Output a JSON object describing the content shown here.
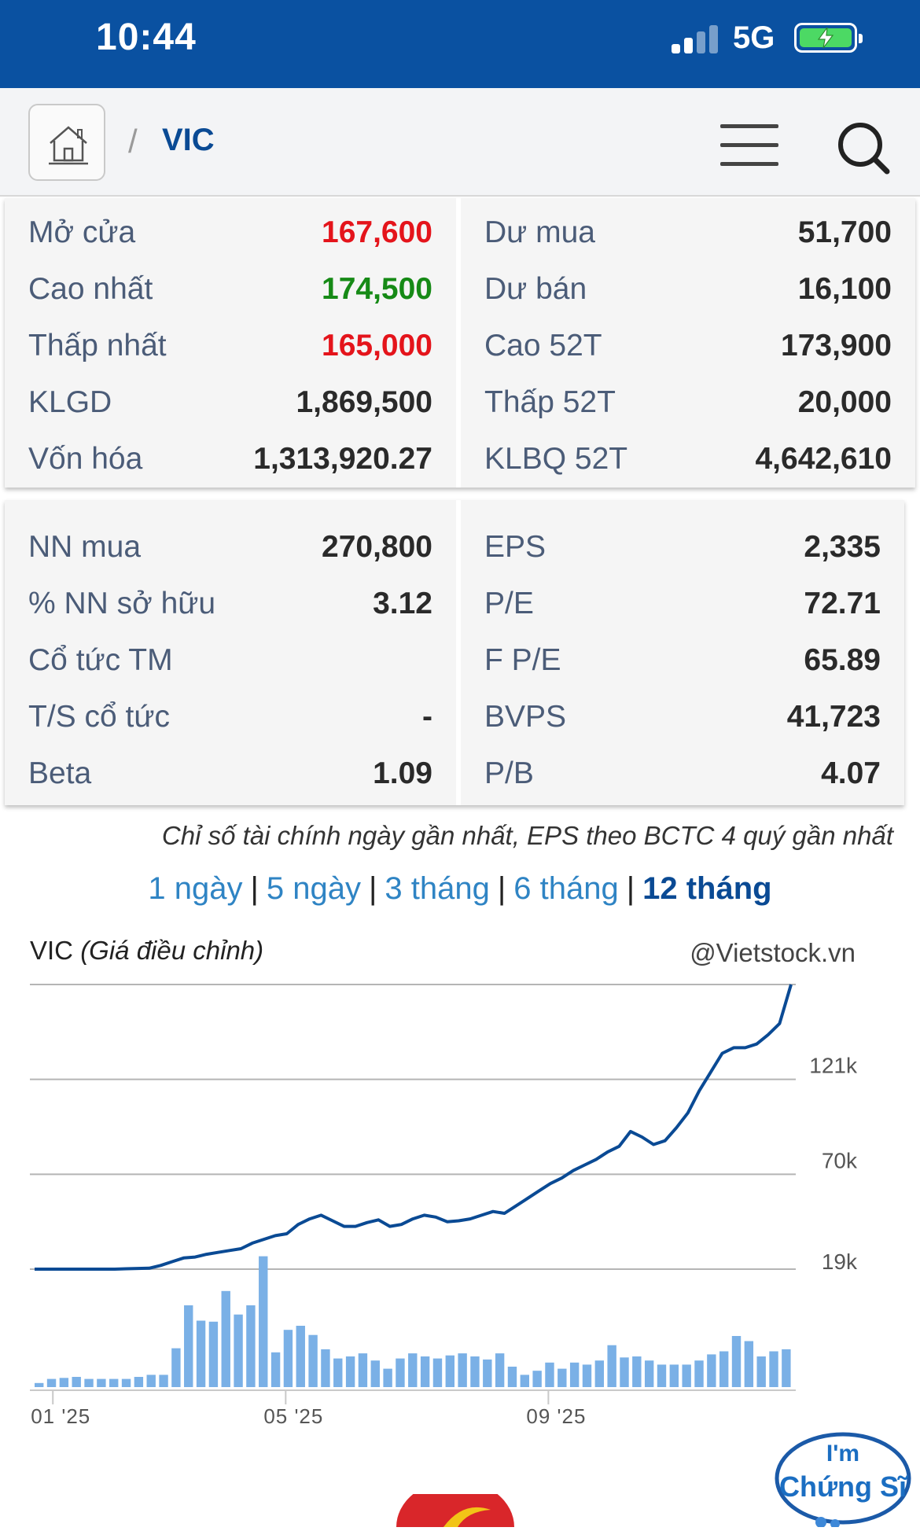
{
  "status_bar": {
    "time": "10:44",
    "network": "5G"
  },
  "header": {
    "separator": "/",
    "symbol": "VIC"
  },
  "price_panel": {
    "left": [
      {
        "label": "Mở cửa",
        "value": "167,600",
        "color": "red"
      },
      {
        "label": "Cao nhất",
        "value": "174,500",
        "color": "green"
      },
      {
        "label": "Thấp nhất",
        "value": "165,000",
        "color": "red"
      },
      {
        "label": "KLGD",
        "value": "1,869,500",
        "color": ""
      },
      {
        "label": "Vốn hóa",
        "value": "1,313,920.27",
        "color": ""
      }
    ],
    "right": [
      {
        "label": "Dư mua",
        "value": "51,700"
      },
      {
        "label": "Dư bán",
        "value": "16,100"
      },
      {
        "label": "Cao 52T",
        "value": "173,900"
      },
      {
        "label": "Thấp 52T",
        "value": "20,000"
      },
      {
        "label": "KLBQ 52T",
        "value": "4,642,610"
      }
    ]
  },
  "ratio_panel": {
    "left": [
      {
        "label": "NN mua",
        "value": "270,800"
      },
      {
        "label": "% NN sở hữu",
        "value": "3.12"
      },
      {
        "label": "Cổ tức TM",
        "value": ""
      },
      {
        "label": "T/S cổ tức",
        "value": "-"
      },
      {
        "label": "Beta",
        "value": "1.09"
      }
    ],
    "right": [
      {
        "label": "EPS",
        "value": "2,335"
      },
      {
        "label": "P/E",
        "value": "72.71"
      },
      {
        "label": "F P/E",
        "value": "65.89"
      },
      {
        "label": "BVPS",
        "value": "41,723"
      },
      {
        "label": "P/B",
        "value": "4.07"
      }
    ]
  },
  "note": "Chỉ số tài chính ngày gần nhất, EPS theo BCTC 4 quý gần nhất",
  "periods": {
    "p1": "1 ngày",
    "p2": "5 ngày",
    "p3": "3 tháng",
    "p4": "6 tháng",
    "p5": "12 tháng",
    "active": "12 tháng"
  },
  "chart_header": {
    "symbol": "VIC",
    "subtitle": "(Giá điều chỉnh)",
    "source": "@Vietstock.vn"
  },
  "mascot": {
    "line1": "I'm",
    "line2": "Chứng Sĩ"
  },
  "colors": {
    "header_bg": "#0a51a1",
    "price_up": "#168a16",
    "price_down": "#e4141b",
    "link": "#2f84c4",
    "line": "#0a4a94",
    "bar": "#7ab0e6"
  },
  "chart_data": {
    "type": "line",
    "title": "VIC (Giá điều chỉnh)",
    "xlabel": "",
    "ylabel": "",
    "x_ticks": [
      "01 '25",
      "05 '25",
      "09 '25"
    ],
    "y_ticks": [
      {
        "label": "19k",
        "value": 19000
      },
      {
        "label": "70k",
        "value": 70000
      },
      {
        "label": "121k",
        "value": 121000
      }
    ],
    "ylim": [
      19000,
      172000
    ],
    "grid": true,
    "series": [
      {
        "values": [
          19000,
          19000,
          19000,
          19000,
          19000,
          19000,
          19000,
          19000,
          19200,
          19400,
          19500,
          21000,
          23000,
          25000,
          25500,
          27000,
          28000,
          29000,
          30000,
          33000,
          35000,
          37000,
          38000,
          43000,
          46000,
          48000,
          45000,
          42000,
          42000,
          44000,
          45500,
          42000,
          43000,
          46000,
          48000,
          47000,
          44500,
          45000,
          46000,
          48000,
          50000,
          49000,
          53000,
          57000,
          61000,
          65000,
          68000,
          72000,
          75000,
          78000,
          82000,
          85000,
          93000,
          90000,
          86000,
          88000,
          95000,
          103000,
          115000,
          125000,
          135000,
          138000,
          138000,
          140000,
          145000,
          151000,
          172000
        ]
      }
    ],
    "volume": {
      "max_label": "",
      "values": [
        0.04,
        0.08,
        0.09,
        0.1,
        0.08,
        0.08,
        0.08,
        0.08,
        0.1,
        0.12,
        0.12,
        0.38,
        0.8,
        0.65,
        0.64,
        0.94,
        0.71,
        0.8,
        1.28,
        0.34,
        0.56,
        0.6,
        0.51,
        0.37,
        0.28,
        0.3,
        0.33,
        0.26,
        0.18,
        0.28,
        0.33,
        0.3,
        0.28,
        0.31,
        0.33,
        0.3,
        0.27,
        0.33,
        0.2,
        0.12,
        0.16,
        0.24,
        0.18,
        0.24,
        0.22,
        0.26,
        0.41,
        0.29,
        0.3,
        0.26,
        0.22,
        0.22,
        0.22,
        0.26,
        0.32,
        0.35,
        0.5,
        0.45,
        0.3,
        0.35,
        0.37
      ]
    }
  }
}
